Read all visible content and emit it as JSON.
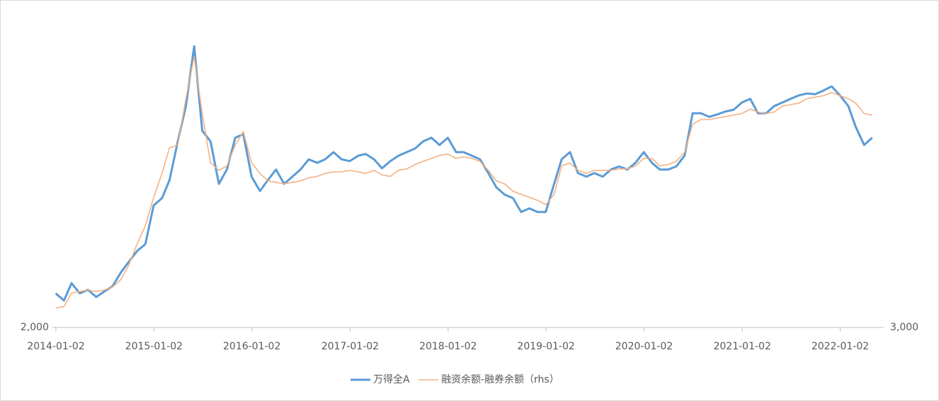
{
  "chart_data": {
    "type": "line",
    "x": [
      "2014-01-01",
      "2014-02-01",
      "2014-03-01",
      "2014-04-01",
      "2014-05-01",
      "2014-06-01",
      "2014-07-01",
      "2014-08-01",
      "2014-09-01",
      "2014-10-01",
      "2014-11-01",
      "2014-12-01",
      "2015-01-01",
      "2015-02-01",
      "2015-03-01",
      "2015-04-01",
      "2015-05-01",
      "2015-06-01",
      "2015-07-01",
      "2015-08-01",
      "2015-09-01",
      "2015-10-01",
      "2015-11-01",
      "2015-12-01",
      "2016-01-01",
      "2016-02-01",
      "2016-03-01",
      "2016-04-01",
      "2016-05-01",
      "2016-06-01",
      "2016-07-01",
      "2016-08-01",
      "2016-09-01",
      "2016-10-01",
      "2016-11-01",
      "2016-12-01",
      "2017-01-01",
      "2017-02-01",
      "2017-03-01",
      "2017-04-01",
      "2017-05-01",
      "2017-06-01",
      "2017-07-01",
      "2017-08-01",
      "2017-09-01",
      "2017-10-01",
      "2017-11-01",
      "2017-12-01",
      "2018-01-01",
      "2018-02-01",
      "2018-03-01",
      "2018-04-01",
      "2018-05-01",
      "2018-06-01",
      "2018-07-01",
      "2018-08-01",
      "2018-09-01",
      "2018-10-01",
      "2018-11-01",
      "2018-12-01",
      "2019-01-01",
      "2019-02-01",
      "2019-03-01",
      "2019-04-01",
      "2019-05-01",
      "2019-06-01",
      "2019-07-01",
      "2019-08-01",
      "2019-09-01",
      "2019-10-01",
      "2019-11-01",
      "2019-12-01",
      "2020-01-01",
      "2020-02-01",
      "2020-03-01",
      "2020-04-01",
      "2020-05-01",
      "2020-06-01",
      "2020-07-01",
      "2020-08-01",
      "2020-09-01",
      "2020-10-01",
      "2020-11-01",
      "2020-12-01",
      "2021-01-01",
      "2021-02-01",
      "2021-03-01",
      "2021-04-01",
      "2021-05-01",
      "2021-06-01",
      "2021-07-01",
      "2021-08-01",
      "2021-09-01",
      "2021-10-01",
      "2021-11-01",
      "2021-12-01",
      "2022-01-01",
      "2022-02-01",
      "2022-03-01",
      "2022-04-01",
      "2022-05-01"
    ],
    "series": [
      {
        "name": "万得全A",
        "color": "#5b9bd5",
        "width": 3,
        "values": [
          2570,
          2450,
          2740,
          2570,
          2630,
          2510,
          2600,
          2690,
          2920,
          3100,
          3280,
          3390,
          4040,
          4160,
          4460,
          5110,
          5700,
          6700,
          5290,
          5110,
          4400,
          4640,
          5170,
          5230,
          4520,
          4280,
          4460,
          4640,
          4400,
          4520,
          4640,
          4810,
          4750,
          4810,
          4930,
          4810,
          4780,
          4870,
          4900,
          4810,
          4660,
          4780,
          4870,
          4930,
          4990,
          5110,
          5170,
          5050,
          5170,
          4930,
          4930,
          4870,
          4810,
          4580,
          4340,
          4220,
          4160,
          3930,
          3990,
          3930,
          3930,
          4400,
          4810,
          4930,
          4580,
          4520,
          4580,
          4520,
          4640,
          4690,
          4640,
          4750,
          4930,
          4750,
          4640,
          4640,
          4690,
          4870,
          5580,
          5580,
          5520,
          5560,
          5610,
          5640,
          5760,
          5820,
          5580,
          5580,
          5700,
          5760,
          5820,
          5880,
          5910,
          5900,
          5960,
          6030,
          5880,
          5700,
          5350,
          5050,
          5170
        ]
      },
      {
        "name": "融资余额-融券余额（rhs）",
        "color": "#f4b183",
        "width": 1.6,
        "axis": "y2",
        "values": [
          4300,
          4400,
          5300,
          5400,
          5500,
          5400,
          5500,
          5700,
          6200,
          7200,
          8600,
          9800,
          11700,
          13300,
          15000,
          15200,
          18300,
          21100,
          17300,
          14000,
          13500,
          13800,
          15200,
          16100,
          14000,
          13300,
          12800,
          12700,
          12600,
          12700,
          12800,
          13000,
          13100,
          13300,
          13400,
          13400,
          13500,
          13400,
          13300,
          13500,
          13200,
          13100,
          13500,
          13600,
          13900,
          14100,
          14300,
          14500,
          14600,
          14300,
          14400,
          14300,
          14100,
          13500,
          12800,
          12600,
          12100,
          11900,
          11700,
          11500,
          11200,
          11900,
          13800,
          14000,
          13500,
          13300,
          13500,
          13500,
          13500,
          13600,
          13600,
          13800,
          14300,
          14300,
          13800,
          13900,
          14100,
          14700,
          16600,
          16900,
          16900,
          17000,
          17100,
          17200,
          17300,
          17600,
          17400,
          17300,
          17400,
          17800,
          17900,
          18000,
          18300,
          18400,
          18500,
          18700,
          18500,
          18300,
          18000,
          17300,
          17200
        ]
      }
    ],
    "xlim": [
      "2014-01-02",
      "2022-05-31"
    ],
    "xticks": [
      "2014-01-02",
      "2015-01-02",
      "2016-01-02",
      "2017-01-02",
      "2018-01-02",
      "2019-01-02",
      "2020-01-02",
      "2021-01-02",
      "2022-01-02"
    ],
    "ylim": [
      2000,
      7000
    ],
    "yticks": [
      {
        "value": 2000,
        "label": "2,000"
      }
    ],
    "y2lim": [
      3000,
      23000
    ],
    "y2ticks": [
      {
        "value": 3000,
        "label": "3,000"
      }
    ],
    "grid": false,
    "legend": "bottom"
  }
}
